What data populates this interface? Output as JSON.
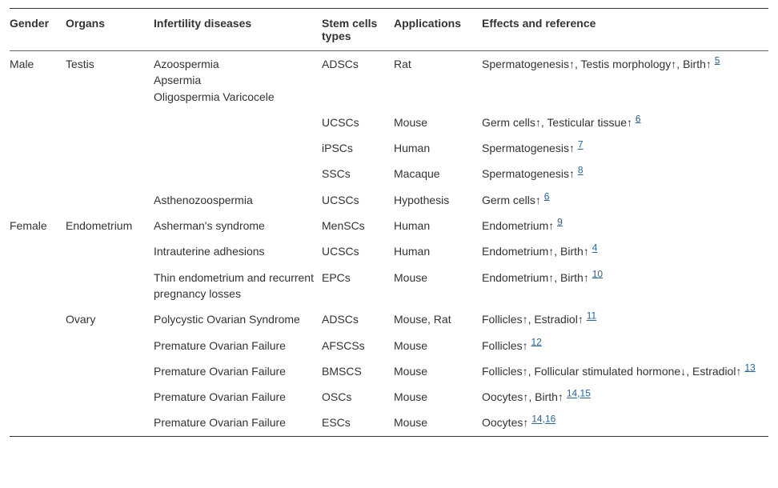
{
  "colors": {
    "text": "#333333",
    "link": "#2a6496",
    "border_dark": "#333333",
    "border_light": "#666666",
    "background": "#ffffff"
  },
  "headers": {
    "gender": "Gender",
    "organs": "Organs",
    "diseases": "Infertility diseases",
    "cells": "Stem cells types",
    "applications": "Applications",
    "effects": "Effects and reference"
  },
  "rows": [
    {
      "gender": "Male",
      "organ": "Testis",
      "disease_lines": [
        "Azoospermia",
        "Apsermia",
        "Oligospermia Varicocele"
      ],
      "cells": "ADSCs",
      "app": "Rat",
      "effects": [
        {
          "text": "Spermatogenesis↑, Testis morphology↑, Birth↑",
          "refs": [
            "5"
          ]
        }
      ]
    },
    {
      "gender": "",
      "organ": "",
      "disease_lines": [],
      "cells": "UCSCs",
      "app": "Mouse",
      "effects": [
        {
          "text": "Germ cells↑, Testicular tissue↑",
          "refs": [
            "6"
          ]
        }
      ]
    },
    {
      "gender": "",
      "organ": "",
      "disease_lines": [],
      "cells": "iPSCs",
      "app": "Human",
      "effects": [
        {
          "text": "Spermatogenesis↑",
          "refs": [
            "7"
          ]
        }
      ]
    },
    {
      "gender": "",
      "organ": "",
      "disease_lines": [],
      "cells": "SSCs",
      "app": "Macaque",
      "effects": [
        {
          "text": "Spermatogenesis↑",
          "refs": [
            "8"
          ]
        }
      ]
    },
    {
      "gender": "",
      "organ": "",
      "disease_lines": [
        "Asthenozoospermia"
      ],
      "cells": "UCSCs",
      "app": "Hypothesis",
      "effects": [
        {
          "text": "Germ cells↑",
          "refs": [
            "6"
          ]
        }
      ]
    },
    {
      "gender": "Female",
      "organ": "Endometrium",
      "disease_lines": [
        "Asherman's syndrome"
      ],
      "cells": "MenSCs",
      "app": "Human",
      "effects": [
        {
          "text": "Endometrium↑",
          "refs": [
            "9"
          ]
        }
      ]
    },
    {
      "gender": "",
      "organ": "",
      "disease_lines": [
        "Intrauterine adhesions"
      ],
      "cells": "UCSCs",
      "app": "Human",
      "effects": [
        {
          "text": "Endometrium↑, Birth↑",
          "refs": [
            "4"
          ]
        }
      ]
    },
    {
      "gender": "",
      "organ": "",
      "disease_lines": [
        "Thin endometrium and recurrent pregnancy losses"
      ],
      "cells": "EPCs",
      "app": "Mouse",
      "effects": [
        {
          "text": "Endometrium↑, Birth↑",
          "refs": [
            "10"
          ]
        }
      ]
    },
    {
      "gender": "",
      "organ": "Ovary",
      "disease_lines": [
        "Polycystic Ovarian Syndrome"
      ],
      "cells": "ADSCs",
      "app": "Mouse, Rat",
      "effects": [
        {
          "text": "Follicles↑, Estradiol↑",
          "refs": [
            "11"
          ]
        }
      ]
    },
    {
      "gender": "",
      "organ": "",
      "disease_lines": [
        "Premature Ovarian Failure"
      ],
      "cells": "AFSCSs",
      "app": "Mouse",
      "effects": [
        {
          "text": "Follicles↑",
          "refs": [
            "12"
          ]
        }
      ]
    },
    {
      "gender": "",
      "organ": "",
      "disease_lines": [
        "Premature Ovarian Failure"
      ],
      "cells": "BMSCS",
      "app": "Mouse",
      "effects": [
        {
          "text": "Follicles↑, Follicular stimulated hormone↓, Estradiol↑",
          "refs": [
            "13"
          ]
        }
      ]
    },
    {
      "gender": "",
      "organ": "",
      "disease_lines": [
        "Premature Ovarian Failure"
      ],
      "cells": "OSCs",
      "app": "Mouse",
      "effects": [
        {
          "text": "Oocytes↑, Birth↑",
          "refs": [
            "14",
            "15"
          ]
        }
      ]
    },
    {
      "gender": "",
      "organ": "",
      "disease_lines": [
        "Premature Ovarian Failure"
      ],
      "cells": "ESCs",
      "app": "Mouse",
      "effects": [
        {
          "text": "Oocytes↑",
          "refs": [
            "14",
            "16"
          ]
        }
      ]
    }
  ]
}
